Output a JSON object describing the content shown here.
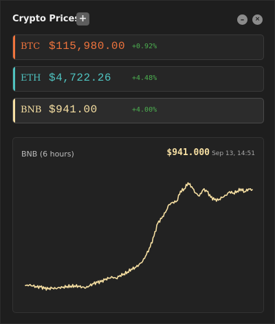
{
  "window": {
    "title": "Crypto Prices",
    "add_label": "+",
    "minimize_label": "–",
    "close_label": "×"
  },
  "tickers": [
    {
      "symbol": "BTC",
      "price": "$115,980.00",
      "change": "+0.92%",
      "color": "#f0743d",
      "selected": false
    },
    {
      "symbol": "ETH",
      "price": "$4,722.26",
      "change": "+4.48%",
      "color": "#4fc3c0",
      "selected": false
    },
    {
      "symbol": "BNB",
      "price": "$941.00",
      "change": "+4.00%",
      "color": "#f7e0a3",
      "selected": true
    }
  ],
  "chart": {
    "label": "BNB (6 hours)",
    "current_price": "$941.000",
    "timestamp": "Sep 13, 14:51",
    "line_color": "#f7e0a3"
  },
  "chart_data": {
    "type": "line",
    "title": "",
    "xlabel": "",
    "ylabel": "",
    "grid": false,
    "x": [
      0,
      6,
      12,
      18,
      24,
      30,
      36,
      42,
      48,
      54,
      60,
      66,
      72,
      78,
      84,
      90,
      96,
      102,
      108,
      114,
      120,
      126,
      132,
      138,
      144,
      150,
      156,
      162,
      168,
      174,
      180,
      186,
      192,
      198,
      204,
      210,
      216,
      222,
      228,
      234,
      240,
      246,
      252,
      258,
      264,
      270,
      276,
      282,
      288,
      294,
      300,
      306,
      312,
      318,
      324,
      330,
      336,
      342,
      348,
      354,
      360
    ],
    "y": [
      902.2,
      902.4,
      902.0,
      901.5,
      901.6,
      901.0,
      900.8,
      901.1,
      901.0,
      901.4,
      901.6,
      901.9,
      902.0,
      902.1,
      902.0,
      901.6,
      901.3,
      902.1,
      902.9,
      903.4,
      903.7,
      904.5,
      905.1,
      905.6,
      905.1,
      906.3,
      906.9,
      907.7,
      908.9,
      909.5,
      910.6,
      912.0,
      914.7,
      917.8,
      922.2,
      927.4,
      929.3,
      931.7,
      935.0,
      935.9,
      936.3,
      940.4,
      941.3,
      943.8,
      942.2,
      939.6,
      938.4,
      941.0,
      940.3,
      937.9,
      936.9,
      936.7,
      937.8,
      938.7,
      940.2,
      939.6,
      940.4,
      941.3,
      940.2,
      941.3,
      941.0
    ],
    "xlim": [
      0,
      360
    ],
    "ylim": [
      895,
      948
    ],
    "series": [
      {
        "color": "#f7e0a3"
      }
    ]
  }
}
